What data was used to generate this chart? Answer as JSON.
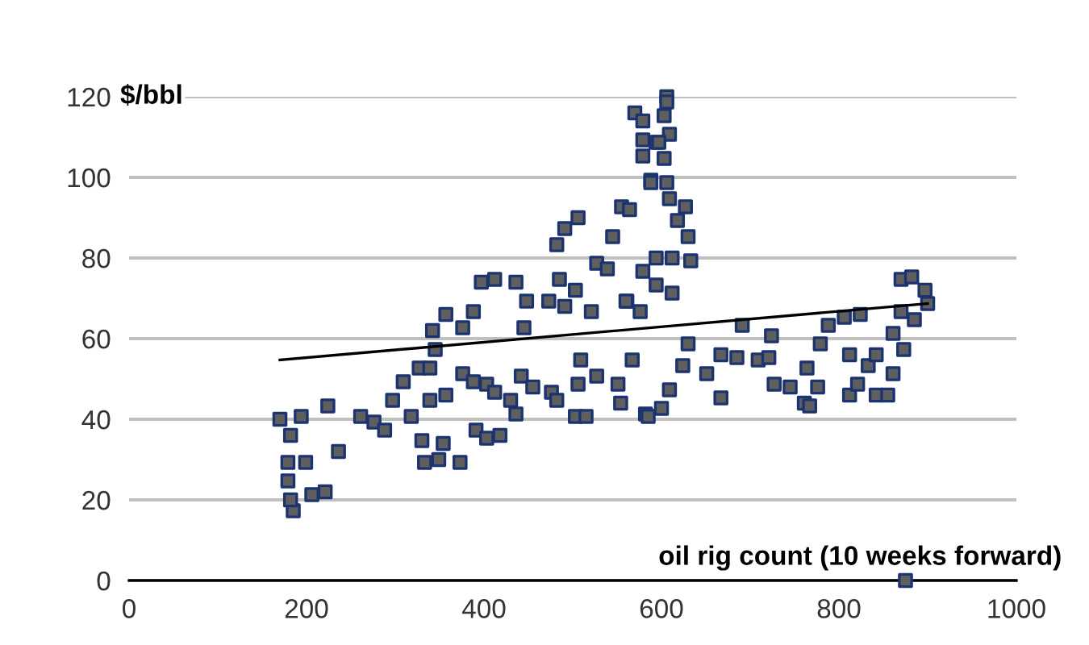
{
  "chart_data": {
    "type": "scatter",
    "ylabel": "$/bbl",
    "xlabel": "oil rig count (10 weeks forward)",
    "xlim": [
      0,
      1000
    ],
    "xticks": [
      0,
      200,
      400,
      600,
      800,
      1000
    ],
    "ylim": [
      0,
      120
    ],
    "yticks": [
      0,
      20,
      40,
      60,
      80,
      100,
      120
    ],
    "grid": "y",
    "series": [
      {
        "marker": "square",
        "color": "#5f5f5f",
        "x": [
          170,
          182,
          179,
          179,
          185,
          182,
          206,
          221,
          199,
          236,
          194,
          224,
          261,
          276,
          288,
          297,
          309,
          327,
          339,
          318,
          330,
          333,
          349,
          354,
          373,
          339,
          357,
          376,
          388,
          403,
          391,
          403,
          418,
          412,
          430,
          442,
          455,
          436,
          476,
          482,
          345,
          342,
          357,
          376,
          388,
          397,
          412,
          436,
          448,
          445,
          473,
          482,
          491,
          506,
          485,
          491,
          521,
          503,
          527,
          545,
          555,
          564,
          539,
          561,
          576,
          509,
          506,
          503,
          515,
          567,
          527,
          551,
          582,
          570,
          579,
          579,
          579,
          588,
          594,
          606,
          606,
          603,
          609,
          597,
          603,
          588,
          606,
          609,
          627,
          618,
          630,
          633,
          612,
          594,
          579,
          594,
          612,
          560,
          554,
          585,
          600,
          609,
          624,
          630,
          651,
          667,
          667,
          691,
          685,
          709,
          724,
          721,
          727,
          745,
          761,
          767,
          764,
          779,
          776,
          788,
          806,
          824,
          812,
          812,
          821,
          842,
          855,
          833,
          842,
          861,
          873,
          861,
          870,
          882,
          897,
          900,
          885,
          870,
          875
        ],
        "values": [
          40,
          36,
          29.3,
          24.7,
          17.3,
          20,
          21.3,
          22,
          29.3,
          32,
          40.7,
          43.3,
          40.7,
          39.3,
          37.3,
          44.7,
          49.3,
          52.7,
          52.7,
          40.7,
          34.7,
          29.3,
          30,
          34,
          29.3,
          44.7,
          46,
          51.3,
          49.3,
          48.7,
          37.3,
          35.3,
          36,
          46.7,
          44.7,
          50.7,
          48,
          41.3,
          46.7,
          44.7,
          57.3,
          62,
          66,
          62.7,
          66.7,
          74,
          74.7,
          74,
          69.3,
          62.7,
          69.3,
          83.3,
          87.3,
          90,
          74.7,
          68,
          66.7,
          72,
          78.7,
          85.3,
          92.7,
          92,
          77.3,
          69.3,
          66.7,
          54.7,
          48.7,
          40.7,
          40.7,
          54.7,
          50.7,
          48.7,
          41.3,
          116,
          114,
          109.3,
          105.3,
          99.3,
          108.7,
          120,
          118.7,
          115.3,
          110.7,
          108.7,
          104.7,
          98.7,
          98.7,
          94.7,
          92.7,
          89.3,
          85.3,
          79.3,
          80,
          80,
          76.7,
          73.3,
          71.3,
          69.3,
          44,
          40.7,
          42.7,
          47.3,
          53.3,
          58.7,
          51.3,
          45.3,
          56,
          63.3,
          55.3,
          54.7,
          60.7,
          55.3,
          48.7,
          48,
          44,
          43.3,
          52.7,
          58.7,
          48,
          63.3,
          65.3,
          66,
          56,
          46,
          48.7,
          46,
          46,
          53.3,
          56,
          51.3,
          57.3,
          61.3,
          74.7,
          75.3,
          72,
          68.7,
          64.7,
          66.7,
          0
        ]
      },
      {
        "type": "line",
        "color": "#000000",
        "x": [
          170,
          900
        ],
        "values": [
          54.7,
          68.7
        ]
      }
    ]
  }
}
